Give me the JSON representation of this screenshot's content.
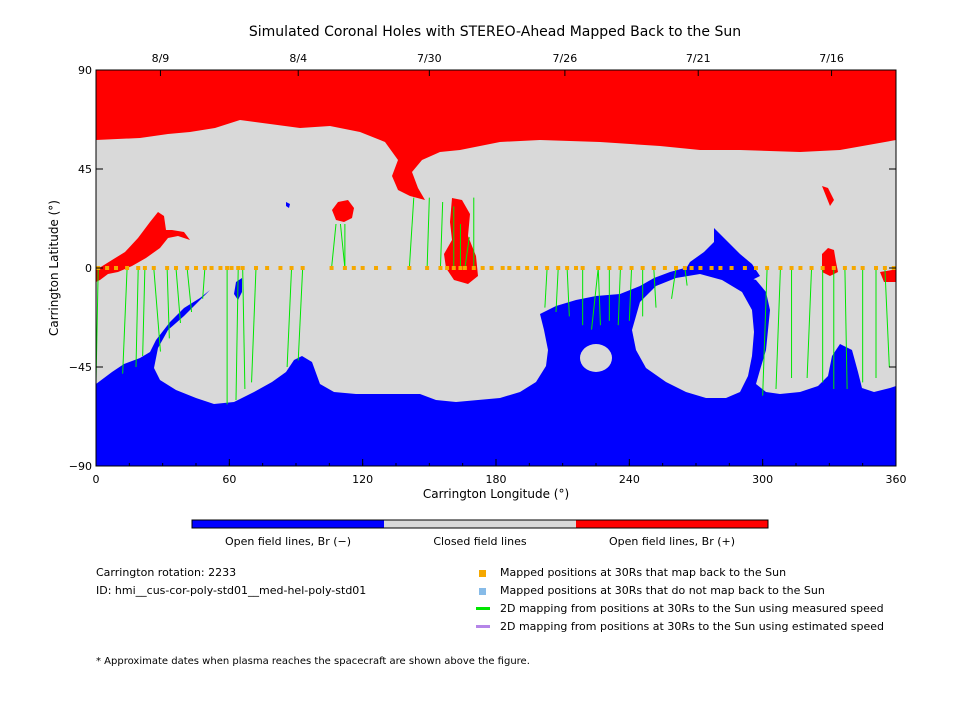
{
  "chart_data": {
    "type": "map",
    "title": "Simulated Coronal Holes with STEREO-Ahead Mapped Back to the Sun",
    "xlabel": "Carrington Longitude (°)",
    "ylabel": "Carrington Latitude (°)",
    "xlim": [
      0,
      360
    ],
    "ylim": [
      -90,
      90
    ],
    "xticks": [
      "0",
      "60",
      "120",
      "180",
      "240",
      "300",
      "360"
    ],
    "yticks": [
      "90",
      "45",
      "0",
      "−45",
      "−90"
    ],
    "top_axis": {
      "labels": [
        "8/9",
        "8/4",
        "7/30",
        "7/26",
        "7/21",
        "7/16"
      ],
      "longitudes": [
        29,
        91,
        150,
        211,
        271,
        331
      ]
    },
    "colorbar": [
      {
        "label": "Open field lines, Br (−)",
        "color": "#0000ff"
      },
      {
        "label": "Closed field lines",
        "color": "#d9d9d9"
      },
      {
        "label": "Open field lines, Br (+)",
        "color": "#ff0000"
      }
    ],
    "mapped_positions_lon": [
      1,
      5,
      9,
      14,
      19,
      22,
      26,
      32,
      36,
      41,
      45,
      49,
      52,
      56,
      59,
      61,
      64,
      66,
      72,
      77,
      83,
      88,
      93,
      106,
      112,
      116,
      120,
      126,
      132,
      141,
      149,
      155,
      158,
      161,
      164,
      166,
      170,
      174,
      178,
      183,
      186,
      190,
      194,
      198,
      203,
      208,
      212,
      216,
      219,
      226,
      231,
      236,
      241,
      246,
      251,
      256,
      261,
      265,
      268,
      272,
      277,
      281,
      286,
      292,
      297,
      302,
      308,
      313,
      317,
      322,
      327,
      332,
      337,
      341,
      345,
      351,
      355,
      359
    ],
    "mapping_lines": [
      {
        "sun_lon": 0,
        "sun_lat": -52
      },
      {
        "sun_lon": 12,
        "sun_lat": -48
      },
      {
        "sun_lon": 18,
        "sun_lat": -45
      },
      {
        "sun_lon": 21,
        "sun_lat": -40
      },
      {
        "sun_lon": 29,
        "sun_lat": -38
      },
      {
        "sun_lon": 33,
        "sun_lat": -32
      },
      {
        "sun_lon": 38,
        "sun_lat": -25
      },
      {
        "sun_lon": 43,
        "sun_lat": -20
      },
      {
        "sun_lon": 48,
        "sun_lat": -14
      },
      {
        "sun_lon": 59,
        "sun_lat": -62
      },
      {
        "sun_lon": 63,
        "sun_lat": -60
      },
      {
        "sun_lon": 67,
        "sun_lat": -55
      },
      {
        "sun_lon": 70,
        "sun_lat": -52
      },
      {
        "sun_lon": 86,
        "sun_lat": -45
      },
      {
        "sun_lon": 91,
        "sun_lat": -42
      },
      {
        "sun_lon": 108,
        "sun_lat": 20
      },
      {
        "sun_lon": 110,
        "sun_lat": 20
      },
      {
        "sun_lon": 112,
        "sun_lat": 20
      },
      {
        "sun_lon": 143,
        "sun_lat": 32
      },
      {
        "sun_lon": 150,
        "sun_lat": 32
      },
      {
        "sun_lon": 156,
        "sun_lat": 30
      },
      {
        "sun_lon": 161,
        "sun_lat": 28
      },
      {
        "sun_lon": 164,
        "sun_lat": 20
      },
      {
        "sun_lon": 168,
        "sun_lat": 14
      },
      {
        "sun_lon": 170,
        "sun_lat": 32
      },
      {
        "sun_lon": 202,
        "sun_lat": -18
      },
      {
        "sun_lon": 207,
        "sun_lat": -20
      },
      {
        "sun_lon": 213,
        "sun_lat": -22
      },
      {
        "sun_lon": 219,
        "sun_lat": -26
      },
      {
        "sun_lon": 223,
        "sun_lat": -28
      },
      {
        "sun_lon": 227,
        "sun_lat": -26
      },
      {
        "sun_lon": 231,
        "sun_lat": -24
      },
      {
        "sun_lon": 235,
        "sun_lat": -26
      },
      {
        "sun_lon": 240,
        "sun_lat": -24
      },
      {
        "sun_lon": 246,
        "sun_lat": -22
      },
      {
        "sun_lon": 252,
        "sun_lat": -18
      },
      {
        "sun_lon": 259,
        "sun_lat": -14
      },
      {
        "sun_lon": 266,
        "sun_lat": -8
      },
      {
        "sun_lon": 300,
        "sun_lat": -58
      },
      {
        "sun_lon": 306,
        "sun_lat": -55
      },
      {
        "sun_lon": 313,
        "sun_lat": -50
      },
      {
        "sun_lon": 320,
        "sun_lat": -50
      },
      {
        "sun_lon": 327,
        "sun_lat": -52
      },
      {
        "sun_lon": 332,
        "sun_lat": -55
      },
      {
        "sun_lon": 338,
        "sun_lat": -55
      },
      {
        "sun_lon": 345,
        "sun_lat": -52
      },
      {
        "sun_lon": 351,
        "sun_lat": -50
      },
      {
        "sun_lon": 357,
        "sun_lat": -45
      }
    ]
  },
  "colors": {
    "negative": "#0000ff",
    "closed": "#d9d9d9",
    "positive": "#ff0000",
    "mapped": "#f5a800",
    "unmapped": "#87bbe8",
    "measured": "#00e600",
    "estimated": "#b585e8"
  },
  "info": {
    "rotation": "Carrington rotation: 2233",
    "id": "ID: hmi__cus-cor-poly-std01__med-hel-poly-std01"
  },
  "legend": {
    "mapped": "Mapped positions at 30Rs that map back to the Sun",
    "unmapped": "Mapped positions at 30Rs that do not map back to the Sun",
    "measured": "2D mapping from positions at 30Rs to the Sun using measured speed",
    "estimated": "2D mapping from positions at 30Rs to the Sun using estimated speed"
  },
  "footnote": "* Approximate dates when plasma reaches the spacecraft are shown above the figure."
}
